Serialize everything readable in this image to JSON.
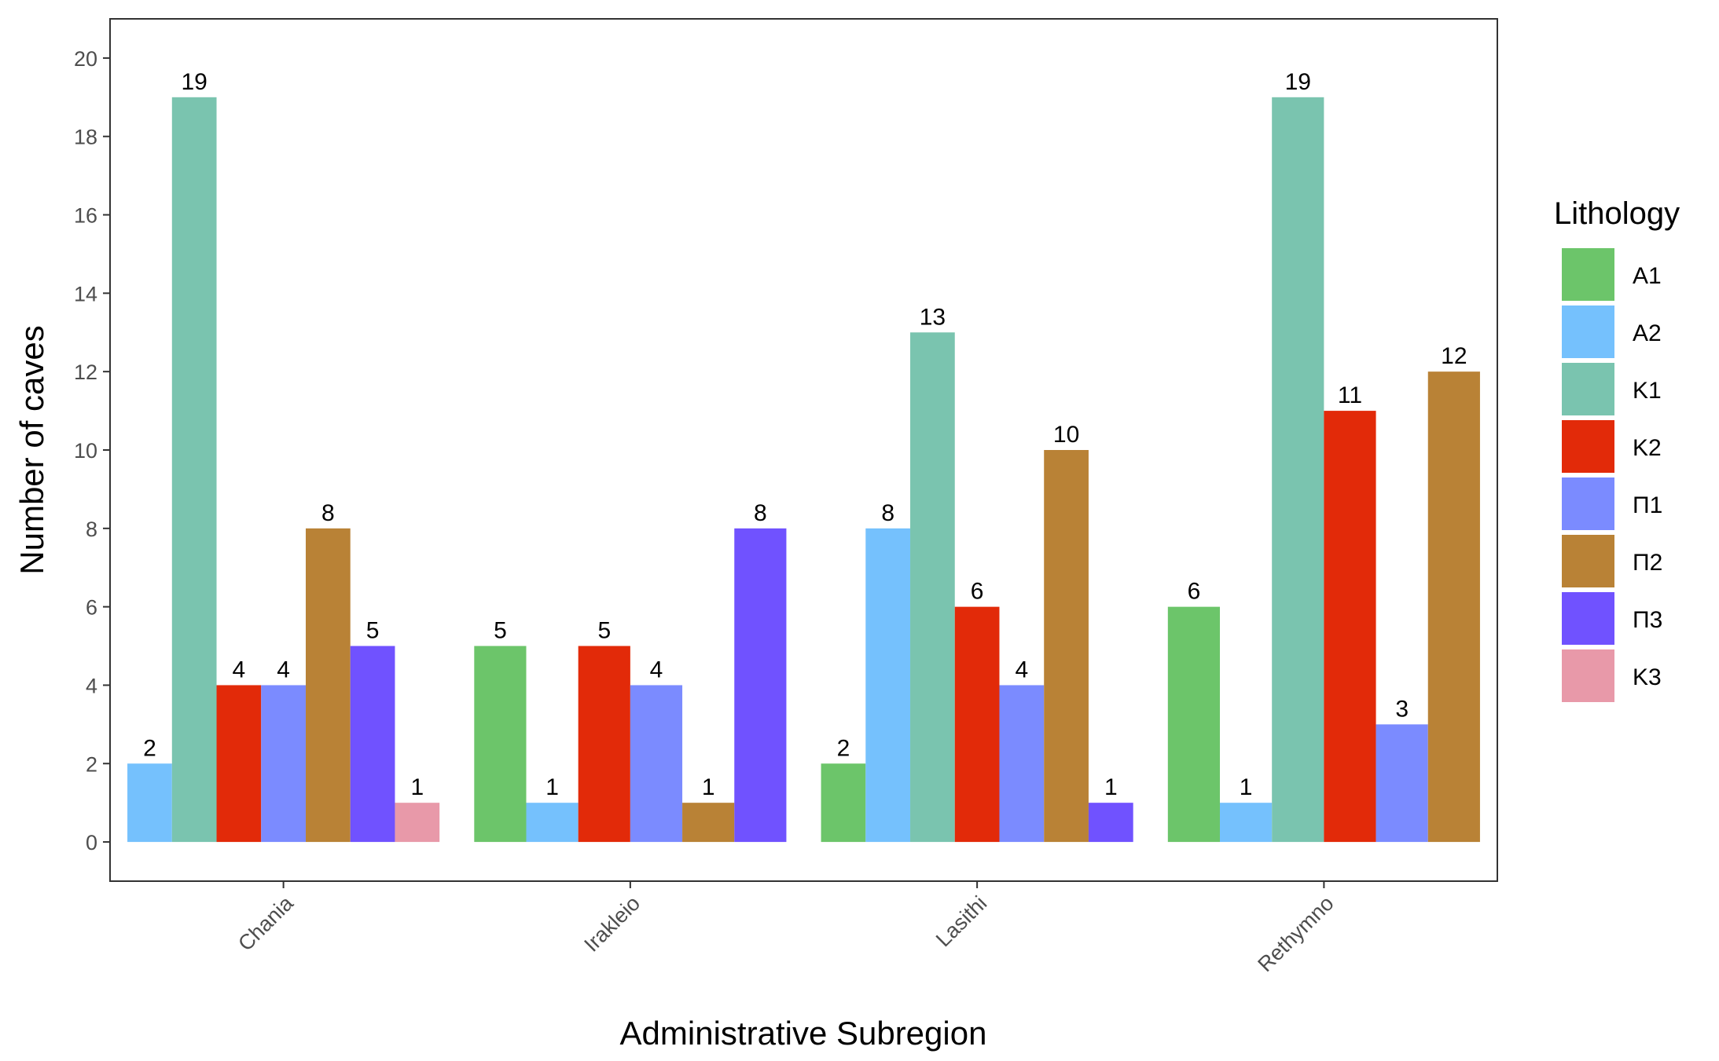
{
  "chart_data": {
    "type": "bar",
    "xlabel": "Administrative Subregion",
    "ylabel": "Number of caves",
    "ylim": [
      -1,
      21
    ],
    "yticks": [
      0,
      2,
      4,
      6,
      8,
      10,
      12,
      14,
      16,
      18,
      20
    ],
    "grid": false,
    "legend_title": "Lithology",
    "legend_position": "right",
    "categories": [
      "Chania",
      "Irakleio",
      "Lasithi",
      "Rethymno"
    ],
    "series": [
      {
        "name": "A1",
        "color": "#6cc56a",
        "values": [
          null,
          5,
          2,
          6
        ]
      },
      {
        "name": "A2",
        "color": "#75c1fd",
        "values": [
          2,
          1,
          8,
          1
        ]
      },
      {
        "name": "K1",
        "color": "#7ac4af",
        "values": [
          19,
          null,
          13,
          19
        ]
      },
      {
        "name": "K2",
        "color": "#e22a09",
        "values": [
          4,
          5,
          6,
          11
        ]
      },
      {
        "name": "Π1",
        "color": "#7b8bff",
        "values": [
          4,
          4,
          4,
          3
        ]
      },
      {
        "name": "Π2",
        "color": "#b98236",
        "values": [
          8,
          1,
          10,
          12
        ]
      },
      {
        "name": "Π3",
        "color": "#7052ff",
        "values": [
          5,
          8,
          1,
          null
        ]
      },
      {
        "name": "K3",
        "color": "#e899a9",
        "values": [
          1,
          null,
          null,
          null
        ]
      }
    ]
  }
}
